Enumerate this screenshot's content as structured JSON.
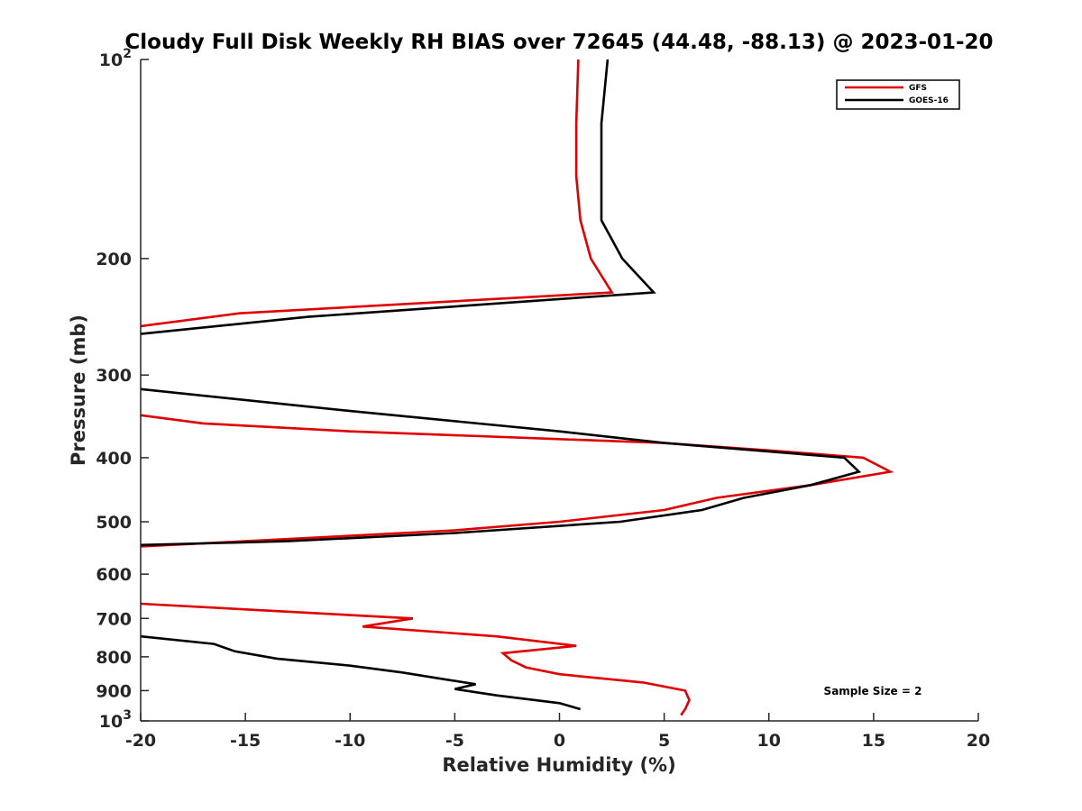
{
  "chart_data": {
    "type": "line",
    "title": "Cloudy Full Disk Weekly RH BIAS over 72645 (44.48, -88.13) @ 2023-01-20",
    "xlabel": "Relative Humidity (%)",
    "ylabel": "Pressure (mb)",
    "xlim": [
      -20,
      20
    ],
    "ylim": [
      100,
      1000
    ],
    "yscale": "log",
    "yreversed": true,
    "x_ticks": [
      "-20",
      "-15",
      "-10",
      "-5",
      "0",
      "5",
      "10",
      "15",
      "20"
    ],
    "y_ticks": [
      {
        "label": "10",
        "sup": "2"
      },
      {
        "label": "200",
        "sup": ""
      },
      {
        "label": "300",
        "sup": ""
      },
      {
        "label": "400",
        "sup": ""
      },
      {
        "label": "500",
        "sup": ""
      },
      {
        "label": "600",
        "sup": ""
      },
      {
        "label": "700",
        "sup": ""
      },
      {
        "label": "800",
        "sup": ""
      },
      {
        "label": "900",
        "sup": ""
      },
      {
        "label": "10",
        "sup": "3"
      }
    ],
    "legend_position": "top-right",
    "grid": false,
    "annotation": "Sample Size = 2",
    "series": [
      {
        "name": "GFS",
        "color": "#e00000",
        "segments": [
          [
            [
              0.9,
              100
            ],
            [
              0.8,
              125
            ],
            [
              0.8,
              150
            ],
            [
              1.0,
              175
            ],
            [
              1.5,
              200
            ],
            [
              2.5,
              225
            ],
            [
              -15.3,
              242
            ],
            [
              -20,
              253
            ]
          ],
          [
            [
              -20,
              345
            ],
            [
              -17,
              355
            ],
            [
              -10,
              365
            ],
            [
              0,
              375
            ],
            [
              5,
              380
            ],
            [
              10,
              390
            ],
            [
              14.5,
              400
            ],
            [
              15.8,
              420
            ],
            [
              12,
              440
            ],
            [
              7.5,
              460
            ],
            [
              5,
              480
            ],
            [
              0,
              500
            ],
            [
              -5,
              515
            ],
            [
              -10,
              525
            ],
            [
              -15,
              535
            ],
            [
              -20,
              545
            ]
          ],
          [
            [
              -20,
              665
            ],
            [
              -7,
              700
            ],
            [
              -9.4,
              720
            ],
            [
              -3,
              745
            ],
            [
              0.8,
              770
            ],
            [
              -2.7,
              790
            ],
            [
              -2.3,
              810
            ],
            [
              -1.6,
              830
            ],
            [
              0,
              850
            ],
            [
              4,
              875
            ],
            [
              6,
              900
            ],
            [
              6.2,
              930
            ],
            [
              6,
              960
            ],
            [
              5.8,
              980
            ]
          ]
        ]
      },
      {
        "name": "GOES-16",
        "color": "#000000",
        "segments": [
          [
            [
              2.3,
              100
            ],
            [
              2.0,
              125
            ],
            [
              2.0,
              150
            ],
            [
              2.0,
              175
            ],
            [
              3.0,
              200
            ],
            [
              4.5,
              225
            ],
            [
              -12,
              245
            ],
            [
              -20,
              260
            ]
          ],
          [
            [
              -20,
              315
            ],
            [
              -10,
              340
            ],
            [
              0,
              365
            ],
            [
              5,
              380
            ],
            [
              13.6,
              400
            ],
            [
              14.3,
              420
            ],
            [
              12,
              440
            ],
            [
              8.8,
              460
            ],
            [
              6.8,
              480
            ],
            [
              2.9,
              500
            ],
            [
              -5,
              520
            ],
            [
              -13,
              535
            ],
            [
              -20,
              542
            ]
          ],
          [
            [
              -20,
              745
            ],
            [
              -16.5,
              765
            ],
            [
              -15.5,
              785
            ],
            [
              -13.5,
              805
            ],
            [
              -10,
              825
            ],
            [
              -7.5,
              845
            ],
            [
              -5.5,
              865
            ],
            [
              -4,
              880
            ],
            [
              -5,
              895
            ],
            [
              -3,
              915
            ],
            [
              0,
              940
            ],
            [
              1,
              960
            ]
          ]
        ]
      }
    ]
  }
}
